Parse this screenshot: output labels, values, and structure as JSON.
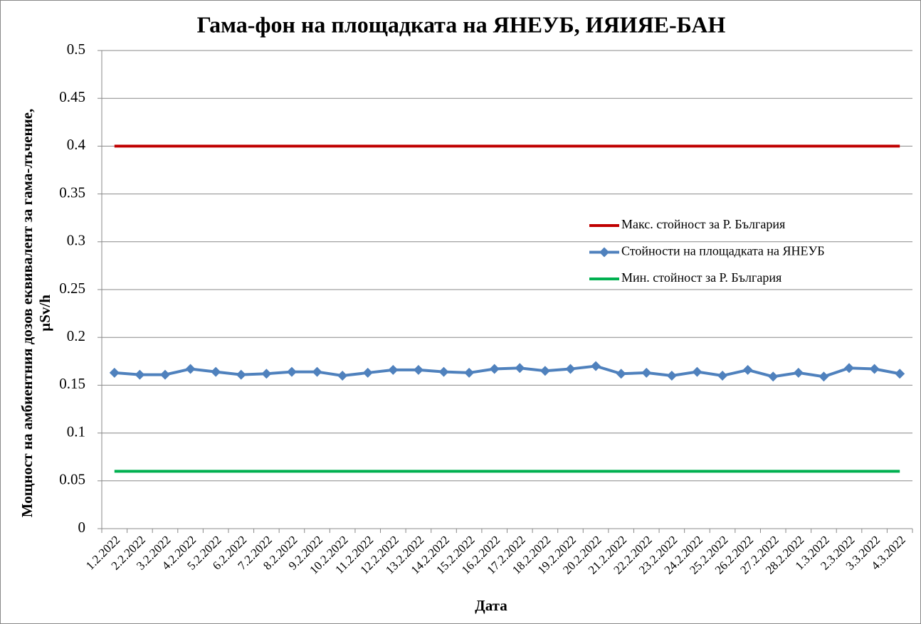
{
  "chart_data": {
    "type": "line",
    "title": "Гама-фон на площадката на ЯНЕУБ, ИЯИЯЕ-БАН",
    "xlabel": "Дата",
    "ylabel": [
      "Мощност на амбиентния  дозов еквивалент  за гама-лъчение,",
      "µSv/h"
    ],
    "categories": [
      "1.2.2022",
      "2.2.2022",
      "3.2.2022",
      "4.2.2022",
      "5.2.2022",
      "6.2.2022",
      "7.2.2022",
      "8.2.2022",
      "9.2.2022",
      "10.2.2022",
      "11.2.2022",
      "12.2.2022",
      "13.2.2022",
      "14.2.2022",
      "15.2.2022",
      "16.2.2022",
      "17.2.2022",
      "18.2.2022",
      "19.2.2022",
      "20.2.2022",
      "21.2.2022",
      "22.2.2022",
      "23.2.2022",
      "24.2.2022",
      "25.2.2022",
      "26.2.2022",
      "27.2.2022",
      "28.2.2022",
      "1.3.2022",
      "2.3.2022",
      "3.3.2022",
      "4.3.2022"
    ],
    "series": [
      {
        "name": "Макс. стойност за Р. България",
        "color": "#c00000",
        "marker": "none",
        "values": [
          0.4,
          0.4,
          0.4,
          0.4,
          0.4,
          0.4,
          0.4,
          0.4,
          0.4,
          0.4,
          0.4,
          0.4,
          0.4,
          0.4,
          0.4,
          0.4,
          0.4,
          0.4,
          0.4,
          0.4,
          0.4,
          0.4,
          0.4,
          0.4,
          0.4,
          0.4,
          0.4,
          0.4,
          0.4,
          0.4,
          0.4,
          0.4
        ]
      },
      {
        "name": "Стойности на площадката на ЯНЕУБ",
        "color": "#4f81bd",
        "marker": "diamond",
        "values": [
          0.163,
          0.161,
          0.161,
          0.167,
          0.164,
          0.161,
          0.162,
          0.164,
          0.164,
          0.16,
          0.163,
          0.166,
          0.166,
          0.164,
          0.163,
          0.167,
          0.168,
          0.165,
          0.167,
          0.17,
          0.162,
          0.163,
          0.16,
          0.164,
          0.16,
          0.166,
          0.159,
          0.163,
          0.159,
          0.168,
          0.167,
          0.162
        ]
      },
      {
        "name": "Мин. стойност за Р. България",
        "color": "#00b050",
        "marker": "none",
        "values": [
          0.06,
          0.06,
          0.06,
          0.06,
          0.06,
          0.06,
          0.06,
          0.06,
          0.06,
          0.06,
          0.06,
          0.06,
          0.06,
          0.06,
          0.06,
          0.06,
          0.06,
          0.06,
          0.06,
          0.06,
          0.06,
          0.06,
          0.06,
          0.06,
          0.06,
          0.06,
          0.06,
          0.06,
          0.06,
          0.06,
          0.06,
          0.06
        ]
      }
    ],
    "ylim": [
      0,
      0.5
    ],
    "yticks": [
      0,
      0.05,
      0.1,
      0.15,
      0.2,
      0.25,
      0.3,
      0.35,
      0.4,
      0.45,
      0.5
    ],
    "grid": true,
    "legend": "right"
  }
}
